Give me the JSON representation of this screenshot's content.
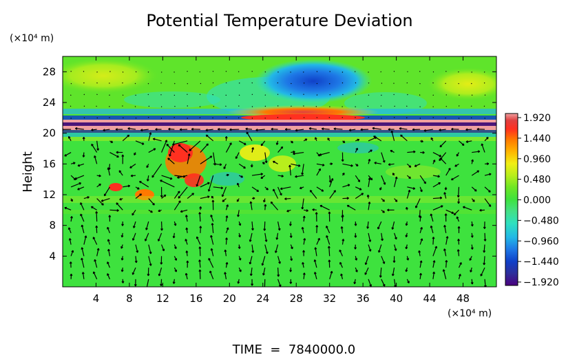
{
  "chart_data": {
    "type": "heatmap",
    "title": "Potential Temperature Deviation",
    "ylabel": "Height",
    "y_unit": "(×10⁴ m)",
    "x_unit": "(×10⁴ m)",
    "footer": "TIME  =  7840000.0",
    "xlim": [
      0,
      52
    ],
    "ylim": [
      0,
      30
    ],
    "x_ticks": [
      "4",
      "8",
      "12",
      "16",
      "20",
      "24",
      "28",
      "32",
      "36",
      "40",
      "44",
      "48"
    ],
    "y_ticks": [
      "4",
      "8",
      "12",
      "16",
      "20",
      "24",
      "28"
    ],
    "colorbar": {
      "range": [
        -1.92,
        1.92
      ],
      "labels": [
        "1.920",
        "1.440",
        "0.960",
        "0.480",
        "0.000",
        "−0.480",
        "−0.960",
        "−1.440",
        "−1.920"
      ],
      "colors": [
        "#4b007f",
        "#2e2e9a",
        "#1040c8",
        "#1e78e6",
        "#22b8e6",
        "#2ee0c0",
        "#44e088",
        "#3ee23e",
        "#6ee624",
        "#b8ee1c",
        "#f2ee14",
        "#ffb400",
        "#ff7800",
        "#ff3020",
        "#e04040",
        "#f0a0a0"
      ]
    },
    "overlay": "velocity vectors (arrows)"
  }
}
